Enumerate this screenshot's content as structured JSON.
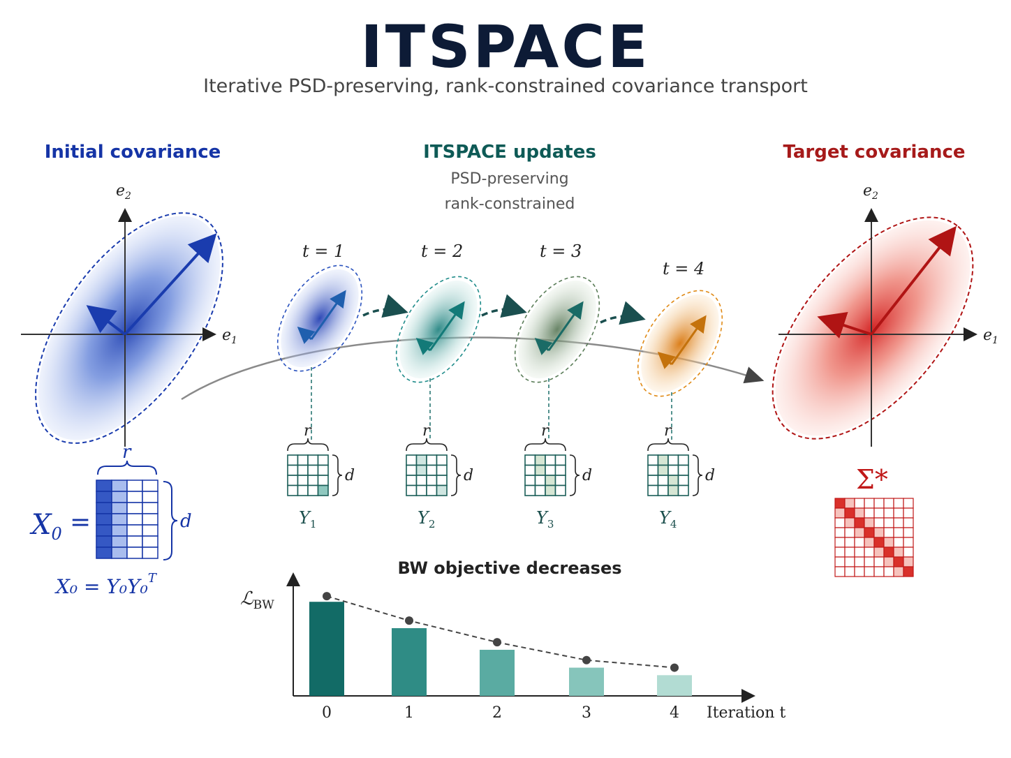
{
  "header": {
    "title": "ITSPACE",
    "subtitle": "Iterative PSD-preserving, rank-constrained covariance transport"
  },
  "initial": {
    "heading": "Initial covariance",
    "axis_x": "e",
    "axis_x_sub": "1",
    "axis_y": "e",
    "axis_y_sub": "2",
    "matrix_symbol": "X",
    "matrix_sub": "0",
    "eq_sign": "=",
    "dim_r": "r",
    "dim_d": "d",
    "factorization": "X₀ = Y₀Y₀",
    "factorization_sup": "T",
    "color": "#1534a6"
  },
  "updates": {
    "heading": "ITSPACE updates",
    "note_1": "PSD-preserving",
    "note_2": "rank-constrained",
    "steps": [
      {
        "t_label": "t = 1",
        "factor": "Y",
        "factor_sub": "1",
        "color": "#2a52be"
      },
      {
        "t_label": "t = 2",
        "factor": "Y",
        "factor_sub": "2",
        "color": "#1f8c8a"
      },
      {
        "t_label": "t = 3",
        "factor": "Y",
        "factor_sub": "3",
        "color": "#5a7d58"
      },
      {
        "t_label": "t = 4",
        "factor": "Y",
        "factor_sub": "4",
        "color": "#e08a16"
      }
    ],
    "dim_r": "r",
    "dim_d": "d",
    "color": "#0e5a56"
  },
  "target": {
    "heading": "Target covariance",
    "axis_x": "e",
    "axis_x_sub": "1",
    "axis_y": "e",
    "axis_y_sub": "2",
    "matrix_symbol": "Σ*",
    "color": "#a61a1a"
  },
  "chart_data": {
    "type": "bar",
    "title": "BW objective decreases",
    "ylabel": "ℒ",
    "ylabel_sub": "BW",
    "xlabel": "Iteration t",
    "categories": [
      "0",
      "1",
      "2",
      "3",
      "4"
    ],
    "values": [
      100,
      72,
      49,
      30,
      22
    ],
    "trend": [
      106,
      80,
      57,
      38,
      30
    ],
    "bar_colors": [
      "#126b66",
      "#2f8c85",
      "#5aaba2",
      "#86c5bb",
      "#b2dcd3"
    ],
    "ylim": [
      0,
      115
    ]
  }
}
